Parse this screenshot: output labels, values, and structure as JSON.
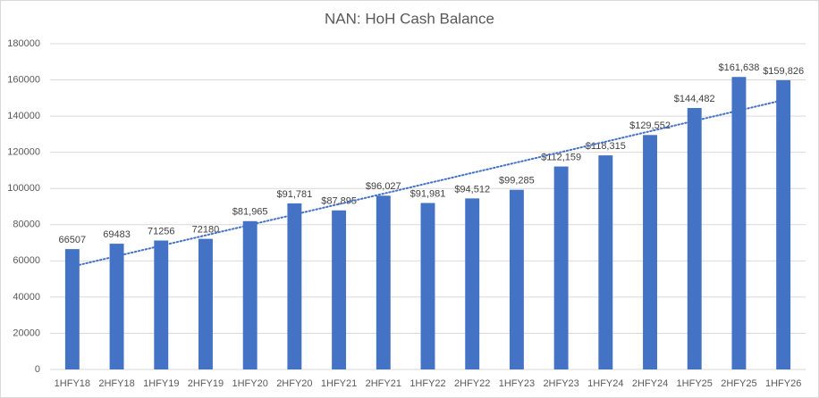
{
  "chart_data": {
    "type": "bar",
    "title": "NAN: HoH Cash Balance",
    "categories": [
      "1HFY18",
      "2HFY18",
      "1HFY19",
      "2HFY19",
      "1HFY20",
      "2HFY20",
      "1HFY21",
      "2HFY21",
      "1HFY22",
      "2HFY22",
      "1HFY23",
      "2HFY23",
      "1HFY24",
      "2HFY24",
      "1HFY25",
      "2HFY25",
      "1HFY26"
    ],
    "values": [
      66507,
      69483,
      71256,
      72180,
      81965,
      91781,
      87895,
      96027,
      91981,
      94512,
      99285,
      112159,
      118315,
      129552,
      144482,
      161638,
      159826
    ],
    "value_labels": [
      "66507",
      "69483",
      "71256",
      "72180",
      "$81,965",
      "$91,781",
      "$87,895",
      "$96,027",
      "$91,981",
      "$94,512",
      "$99,285",
      "$112,159",
      "$118,315",
      "$129,552",
      "$144,482",
      "$161,638",
      "$159,826"
    ],
    "color": "#4472c4",
    "ylim": [
      0,
      180000
    ],
    "yticks": [
      0,
      20000,
      40000,
      60000,
      80000,
      100000,
      120000,
      140000,
      160000,
      180000
    ],
    "grid": true,
    "trendline": {
      "type": "linear",
      "color": "#4472c4"
    }
  }
}
